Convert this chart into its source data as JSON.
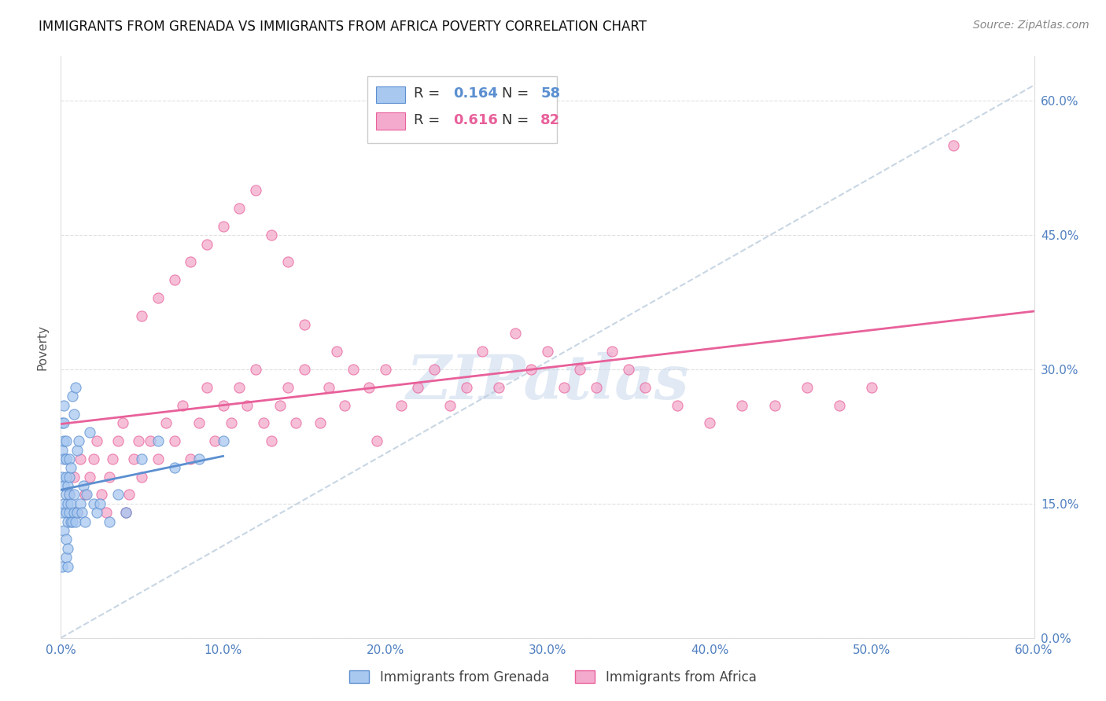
{
  "title": "IMMIGRANTS FROM GRENADA VS IMMIGRANTS FROM AFRICA POVERTY CORRELATION CHART",
  "source": "Source: ZipAtlas.com",
  "ylabel": "Poverty",
  "watermark": "ZIPatlas",
  "xmin": 0.0,
  "xmax": 0.6,
  "ymin": 0.0,
  "ymax": 0.65,
  "yticks": [
    0.0,
    0.15,
    0.3,
    0.45,
    0.6
  ],
  "xticks": [
    0.0,
    0.1,
    0.2,
    0.3,
    0.4,
    0.5,
    0.6
  ],
  "legend_r1": "0.164",
  "legend_n1": "58",
  "legend_r2": "0.616",
  "legend_n2": "82",
  "color_grenada": "#A8C8F0",
  "color_africa": "#F4AACC",
  "color_grenada_edge": "#5B8FD0",
  "color_africa_edge": "#E8609A",
  "color_grenada_line": "#5B8FD0",
  "color_africa_line": "#E8609A",
  "color_dashed": "#BBCCDD",
  "color_axis_labels": "#5080C0",
  "background_color": "#FFFFFF",
  "grid_color": "#DDDDDD",
  "grenada_x": [
    0.001,
    0.001,
    0.001,
    0.001,
    0.001,
    0.002,
    0.002,
    0.002,
    0.002,
    0.002,
    0.002,
    0.002,
    0.003,
    0.003,
    0.003,
    0.003,
    0.003,
    0.003,
    0.003,
    0.004,
    0.004,
    0.004,
    0.004,
    0.004,
    0.005,
    0.005,
    0.005,
    0.005,
    0.006,
    0.006,
    0.006,
    0.007,
    0.007,
    0.008,
    0.008,
    0.008,
    0.009,
    0.009,
    0.01,
    0.01,
    0.011,
    0.012,
    0.013,
    0.014,
    0.015,
    0.016,
    0.018,
    0.02,
    0.022,
    0.024,
    0.03,
    0.035,
    0.04,
    0.05,
    0.06,
    0.07,
    0.085,
    0.1
  ],
  "grenada_y": [
    0.14,
    0.18,
    0.21,
    0.24,
    0.08,
    0.15,
    0.17,
    0.2,
    0.22,
    0.24,
    0.12,
    0.26,
    0.14,
    0.16,
    0.18,
    0.2,
    0.22,
    0.09,
    0.11,
    0.13,
    0.15,
    0.17,
    0.1,
    0.08,
    0.14,
    0.16,
    0.18,
    0.2,
    0.13,
    0.15,
    0.19,
    0.13,
    0.27,
    0.14,
    0.16,
    0.25,
    0.13,
    0.28,
    0.14,
    0.21,
    0.22,
    0.15,
    0.14,
    0.17,
    0.13,
    0.16,
    0.23,
    0.15,
    0.14,
    0.15,
    0.13,
    0.16,
    0.14,
    0.2,
    0.22,
    0.19,
    0.2,
    0.22
  ],
  "africa_x": [
    0.005,
    0.008,
    0.01,
    0.012,
    0.015,
    0.018,
    0.02,
    0.022,
    0.025,
    0.028,
    0.03,
    0.032,
    0.035,
    0.038,
    0.04,
    0.042,
    0.045,
    0.048,
    0.05,
    0.055,
    0.06,
    0.065,
    0.07,
    0.075,
    0.08,
    0.085,
    0.09,
    0.095,
    0.1,
    0.105,
    0.11,
    0.115,
    0.12,
    0.125,
    0.13,
    0.135,
    0.14,
    0.145,
    0.15,
    0.16,
    0.165,
    0.17,
    0.175,
    0.18,
    0.19,
    0.195,
    0.2,
    0.21,
    0.22,
    0.23,
    0.24,
    0.25,
    0.26,
    0.27,
    0.28,
    0.29,
    0.3,
    0.31,
    0.32,
    0.33,
    0.34,
    0.35,
    0.36,
    0.38,
    0.4,
    0.42,
    0.44,
    0.46,
    0.48,
    0.5,
    0.05,
    0.06,
    0.07,
    0.08,
    0.09,
    0.1,
    0.11,
    0.12,
    0.13,
    0.14,
    0.15,
    0.55
  ],
  "africa_y": [
    0.16,
    0.18,
    0.14,
    0.2,
    0.16,
    0.18,
    0.2,
    0.22,
    0.16,
    0.14,
    0.18,
    0.2,
    0.22,
    0.24,
    0.14,
    0.16,
    0.2,
    0.22,
    0.18,
    0.22,
    0.2,
    0.24,
    0.22,
    0.26,
    0.2,
    0.24,
    0.28,
    0.22,
    0.26,
    0.24,
    0.28,
    0.26,
    0.3,
    0.24,
    0.22,
    0.26,
    0.28,
    0.24,
    0.3,
    0.24,
    0.28,
    0.32,
    0.26,
    0.3,
    0.28,
    0.22,
    0.3,
    0.26,
    0.28,
    0.3,
    0.26,
    0.28,
    0.32,
    0.28,
    0.34,
    0.3,
    0.32,
    0.28,
    0.3,
    0.28,
    0.32,
    0.3,
    0.28,
    0.26,
    0.24,
    0.26,
    0.26,
    0.28,
    0.26,
    0.28,
    0.36,
    0.38,
    0.4,
    0.42,
    0.44,
    0.46,
    0.48,
    0.5,
    0.45,
    0.42,
    0.35,
    0.55
  ]
}
